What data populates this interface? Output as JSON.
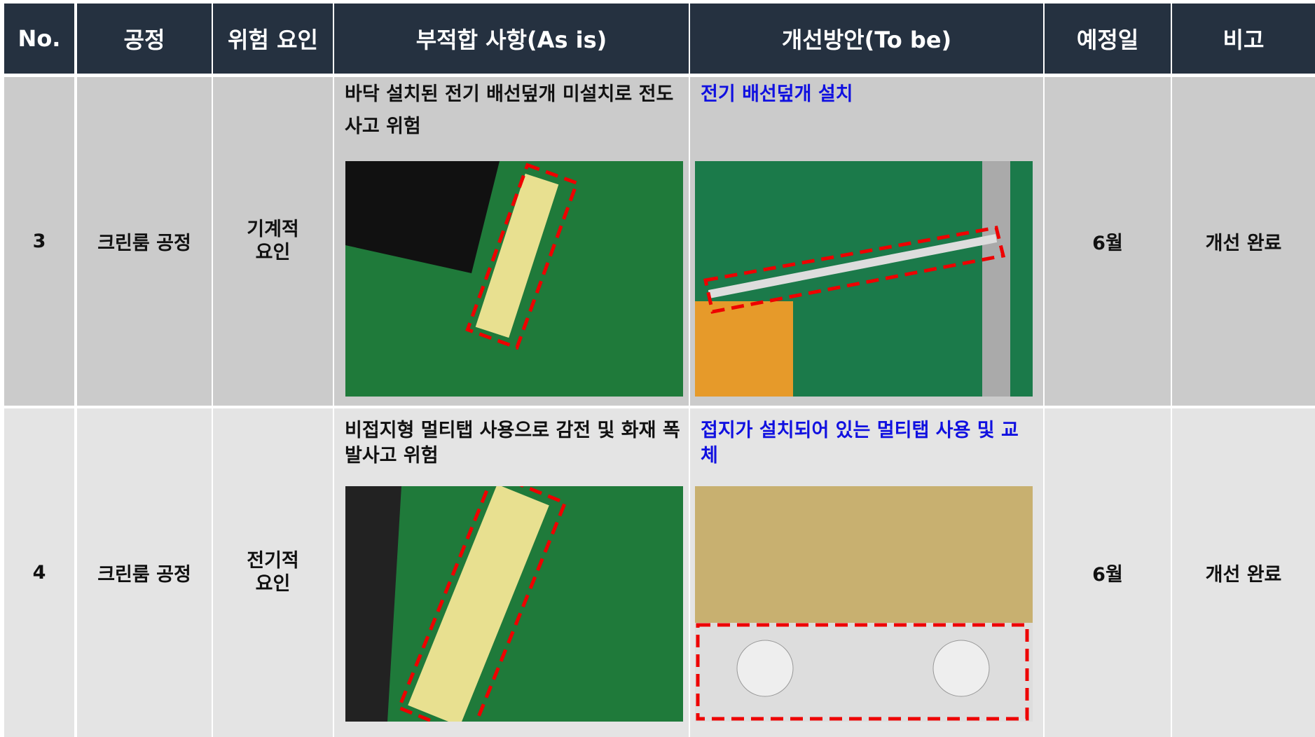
{
  "header": {
    "columns": [
      "No.",
      "공정",
      "위험 요인",
      "부적합 사항(As is)",
      "개선방안(To be)",
      "예정일",
      "비고"
    ]
  },
  "rows": [
    {
      "no": "3",
      "process": "크린룸 공정",
      "hazard": "기계적 요인",
      "as_is": "바닥 설치된 전기 배선덮개 미설치로 전도사고 위험",
      "to_be": "전기 배선덮개 설치",
      "date": "6월",
      "note": "개선 완료"
    },
    {
      "no": "4",
      "process": "크린룸 공정",
      "hazard": "전기적 요인",
      "as_is": "비접지형 멀티탭 사용으로 감전 및 화재 폭발사고 위험",
      "to_be": "접지가 설치되어 있는 멀티탭 사용 및 교체",
      "date": "6월",
      "note": "개선 완료"
    }
  ]
}
